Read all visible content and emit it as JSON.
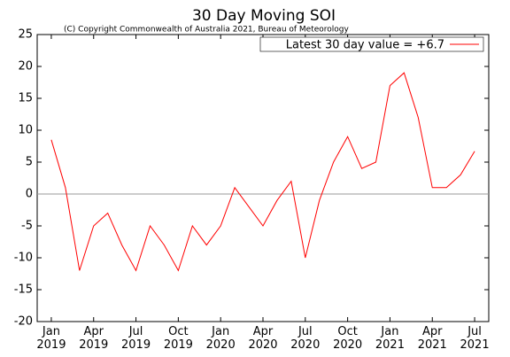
{
  "chart_data": {
    "type": "line",
    "title": "30 Day Moving SOI",
    "subtitle": "(C) Copyright Commonwealth of Australia 2021, Bureau of Meteorology",
    "legend_position": "top-right",
    "x": [
      "2019-01",
      "2019-02",
      "2019-03",
      "2019-04",
      "2019-05",
      "2019-06",
      "2019-07",
      "2019-08",
      "2019-09",
      "2019-10",
      "2019-11",
      "2019-12",
      "2020-01",
      "2020-02",
      "2020-03",
      "2020-04",
      "2020-05",
      "2020-06",
      "2020-07",
      "2020-08",
      "2020-09",
      "2020-10",
      "2020-11",
      "2020-12",
      "2021-01",
      "2021-02",
      "2021-03",
      "2021-04",
      "2021-05",
      "2021-06",
      "2021-07"
    ],
    "series": [
      {
        "name": "Latest 30 day value = +6.7",
        "color": "#ff0000",
        "values": [
          8.5,
          1,
          -12,
          -5,
          -3,
          -8,
          -12,
          -5,
          -8,
          -12,
          -5,
          -8,
          -5,
          1,
          -2,
          -5,
          -1,
          2,
          -10,
          -1,
          5,
          9,
          4,
          5,
          17,
          19,
          12,
          1,
          1,
          3,
          6.7
        ]
      }
    ],
    "xlim": [
      "2018-12",
      "2021-08"
    ],
    "xticks": [
      {
        "value": "2019-01",
        "label": "Jan 2019"
      },
      {
        "value": "2019-04",
        "label": "Apr 2019"
      },
      {
        "value": "2019-07",
        "label": "Jul 2019"
      },
      {
        "value": "2019-10",
        "label": "Oct 2019"
      },
      {
        "value": "2020-01",
        "label": "Jan 2020"
      },
      {
        "value": "2020-04",
        "label": "Apr 2020"
      },
      {
        "value": "2020-07",
        "label": "Jul 2020"
      },
      {
        "value": "2020-10",
        "label": "Oct 2020"
      },
      {
        "value": "2021-01",
        "label": "Jan 2021"
      },
      {
        "value": "2021-04",
        "label": "Apr 2021"
      },
      {
        "value": "2021-07",
        "label": "Jul 2021"
      }
    ],
    "ylim": [
      -20,
      25
    ],
    "yticks": [
      -20,
      -15,
      -10,
      -5,
      0,
      5,
      10,
      15,
      20,
      25
    ]
  }
}
